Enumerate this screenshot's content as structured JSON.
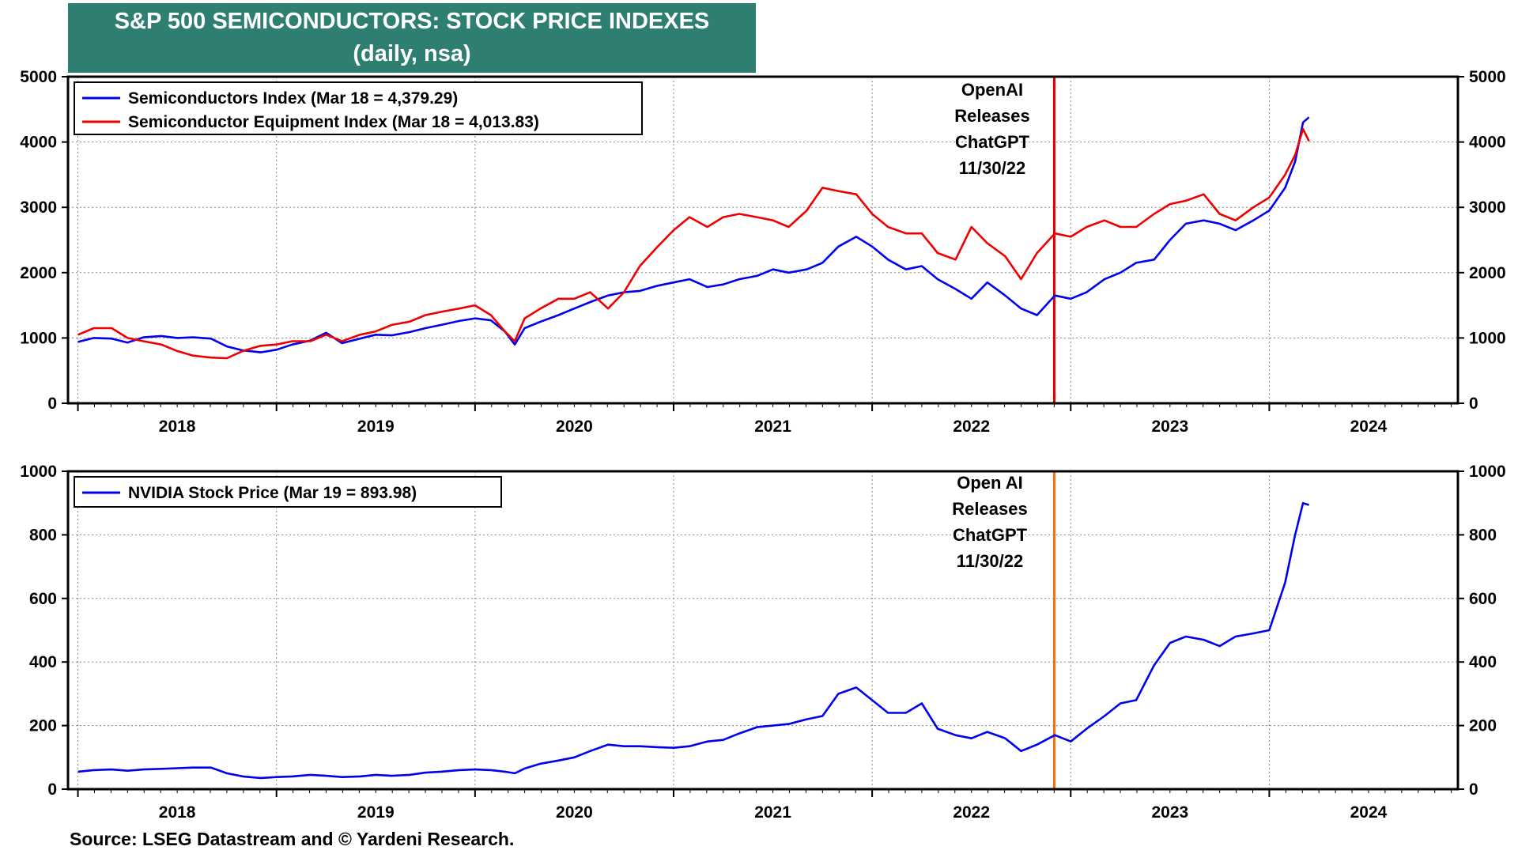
{
  "header": {
    "title": "S&P 500 SEMICONDUCTORS: STOCK PRICE INDEXES",
    "subtitle": "(daily, nsa)"
  },
  "footer": {
    "source": "Source: LSEG Datastream and © Yardeni Research."
  },
  "chart_data": [
    {
      "type": "line",
      "title": "S&P 500 Semiconductors and Semiconductor Equipment Indexes",
      "xlim": [
        2017.95,
        2024.95
      ],
      "ylim": [
        0,
        5000
      ],
      "yticks": [
        "0",
        "1000",
        "2000",
        "3000",
        "4000",
        "5000"
      ],
      "yticks_right": [
        "0",
        "1000",
        "2000",
        "3000",
        "4000",
        "5000"
      ],
      "xtick_labels": [
        "2018",
        "2019",
        "2020",
        "2021",
        "2022",
        "2023",
        "2024"
      ],
      "grid": true,
      "legend_position": "top-left",
      "annotation": {
        "lines": [
          "OpenAI",
          "Releases",
          "ChatGPT",
          "11/30/22"
        ],
        "x": 2022.917,
        "color": "#e00000"
      },
      "series": [
        {
          "name": "Semiconductors Index (Mar 18 = 4,379.29)",
          "color": "#0000ee",
          "x": [
            2018.0,
            2018.08,
            2018.17,
            2018.25,
            2018.33,
            2018.42,
            2018.5,
            2018.58,
            2018.67,
            2018.75,
            2018.83,
            2018.92,
            2019.0,
            2019.08,
            2019.17,
            2019.25,
            2019.33,
            2019.42,
            2019.5,
            2019.58,
            2019.67,
            2019.75,
            2019.83,
            2019.92,
            2020.0,
            2020.08,
            2020.15,
            2020.2,
            2020.25,
            2020.33,
            2020.42,
            2020.5,
            2020.58,
            2020.67,
            2020.75,
            2020.83,
            2020.92,
            2021.0,
            2021.08,
            2021.17,
            2021.25,
            2021.33,
            2021.42,
            2021.5,
            2021.58,
            2021.67,
            2021.75,
            2021.83,
            2021.92,
            2022.0,
            2022.08,
            2022.17,
            2022.25,
            2022.33,
            2022.42,
            2022.5,
            2022.58,
            2022.67,
            2022.75,
            2022.83,
            2022.92,
            2023.0,
            2023.08,
            2023.17,
            2023.25,
            2023.33,
            2023.42,
            2023.5,
            2023.58,
            2023.67,
            2023.75,
            2023.83,
            2023.92,
            2024.0,
            2024.08,
            2024.13,
            2024.17,
            2024.2
          ],
          "values": [
            940,
            1000,
            990,
            930,
            1010,
            1030,
            1000,
            1010,
            990,
            870,
            810,
            780,
            820,
            900,
            960,
            1080,
            920,
            990,
            1050,
            1040,
            1090,
            1150,
            1200,
            1260,
            1300,
            1270,
            1100,
            900,
            1150,
            1250,
            1350,
            1450,
            1550,
            1650,
            1700,
            1720,
            1800,
            1850,
            1900,
            1780,
            1820,
            1900,
            1950,
            2050,
            2000,
            2050,
            2150,
            2400,
            2550,
            2400,
            2200,
            2050,
            2100,
            1900,
            1750,
            1600,
            1850,
            1650,
            1450,
            1350,
            1650,
            1600,
            1700,
            1900,
            2000,
            2150,
            2200,
            2500,
            2750,
            2800,
            2750,
            2650,
            2800,
            2950,
            3300,
            3700,
            4300,
            4379.29
          ]
        },
        {
          "name": "Semiconductor Equipment Index (Mar 18 = 4,013.83)",
          "color": "#ee0000",
          "x": [
            2018.0,
            2018.08,
            2018.17,
            2018.25,
            2018.33,
            2018.42,
            2018.5,
            2018.58,
            2018.67,
            2018.75,
            2018.83,
            2018.92,
            2019.0,
            2019.08,
            2019.17,
            2019.25,
            2019.33,
            2019.42,
            2019.5,
            2019.58,
            2019.67,
            2019.75,
            2019.83,
            2019.92,
            2020.0,
            2020.08,
            2020.15,
            2020.2,
            2020.25,
            2020.33,
            2020.42,
            2020.5,
            2020.58,
            2020.67,
            2020.75,
            2020.83,
            2020.92,
            2021.0,
            2021.08,
            2021.17,
            2021.25,
            2021.33,
            2021.42,
            2021.5,
            2021.58,
            2021.67,
            2021.75,
            2021.83,
            2021.92,
            2022.0,
            2022.08,
            2022.17,
            2022.25,
            2022.33,
            2022.42,
            2022.5,
            2022.58,
            2022.67,
            2022.75,
            2022.83,
            2022.92,
            2023.0,
            2023.08,
            2023.17,
            2023.25,
            2023.33,
            2023.42,
            2023.5,
            2023.58,
            2023.67,
            2023.75,
            2023.83,
            2023.92,
            2024.0,
            2024.08,
            2024.13,
            2024.17,
            2024.2
          ],
          "values": [
            1050,
            1150,
            1150,
            1000,
            950,
            900,
            800,
            730,
            700,
            690,
            800,
            880,
            900,
            950,
            950,
            1050,
            950,
            1050,
            1100,
            1200,
            1250,
            1350,
            1400,
            1450,
            1500,
            1350,
            1100,
            950,
            1300,
            1450,
            1600,
            1600,
            1700,
            1450,
            1700,
            2100,
            2400,
            2650,
            2850,
            2700,
            2850,
            2900,
            2850,
            2800,
            2700,
            2950,
            3300,
            3250,
            3200,
            2900,
            2700,
            2600,
            2600,
            2300,
            2200,
            2700,
            2450,
            2250,
            1900,
            2300,
            2600,
            2550,
            2700,
            2800,
            2700,
            2700,
            2900,
            3050,
            3100,
            3200,
            2900,
            2800,
            3000,
            3150,
            3500,
            3800,
            4200,
            4013.83
          ]
        }
      ]
    },
    {
      "type": "line",
      "title": "NVIDIA Stock Price",
      "xlim": [
        2017.95,
        2024.95
      ],
      "ylim": [
        0,
        1000
      ],
      "yticks": [
        "0",
        "200",
        "400",
        "600",
        "800",
        "1000"
      ],
      "yticks_right": [
        "0",
        "200",
        "400",
        "600",
        "800",
        "1000"
      ],
      "xtick_labels": [
        "2018",
        "2019",
        "2020",
        "2021",
        "2022",
        "2023",
        "2024"
      ],
      "grid": true,
      "legend_position": "top-left",
      "annotation": {
        "lines": [
          "Open AI",
          "Releases",
          "ChatGPT",
          "11/30/22"
        ],
        "x": 2022.917,
        "color": "#f07010"
      },
      "series": [
        {
          "name": "NVIDIA Stock Price (Mar 19 = 893.98)",
          "color": "#0000ee",
          "x": [
            2018.0,
            2018.08,
            2018.17,
            2018.25,
            2018.33,
            2018.42,
            2018.5,
            2018.58,
            2018.67,
            2018.75,
            2018.83,
            2018.92,
            2019.0,
            2019.08,
            2019.17,
            2019.25,
            2019.33,
            2019.42,
            2019.5,
            2019.58,
            2019.67,
            2019.75,
            2019.83,
            2019.92,
            2020.0,
            2020.08,
            2020.15,
            2020.2,
            2020.25,
            2020.33,
            2020.42,
            2020.5,
            2020.58,
            2020.67,
            2020.75,
            2020.83,
            2020.92,
            2021.0,
            2021.08,
            2021.17,
            2021.25,
            2021.33,
            2021.42,
            2021.5,
            2021.58,
            2021.67,
            2021.75,
            2021.83,
            2021.92,
            2022.0,
            2022.08,
            2022.17,
            2022.25,
            2022.33,
            2022.42,
            2022.5,
            2022.58,
            2022.67,
            2022.75,
            2022.83,
            2022.92,
            2023.0,
            2023.08,
            2023.17,
            2023.25,
            2023.33,
            2023.42,
            2023.5,
            2023.58,
            2023.67,
            2023.75,
            2023.83,
            2023.92,
            2024.0,
            2024.08,
            2024.13,
            2024.17,
            2024.2
          ],
          "values": [
            55,
            60,
            62,
            58,
            62,
            64,
            66,
            68,
            68,
            50,
            40,
            35,
            38,
            40,
            45,
            42,
            38,
            40,
            45,
            42,
            45,
            52,
            55,
            60,
            62,
            60,
            55,
            50,
            65,
            80,
            90,
            100,
            120,
            140,
            135,
            135,
            132,
            130,
            135,
            150,
            155,
            175,
            195,
            200,
            205,
            220,
            230,
            300,
            320,
            280,
            240,
            240,
            270,
            190,
            170,
            160,
            180,
            160,
            120,
            140,
            170,
            150,
            190,
            230,
            270,
            280,
            390,
            460,
            480,
            470,
            450,
            480,
            490,
            500,
            650,
            800,
            900,
            893.98
          ]
        }
      ]
    }
  ]
}
